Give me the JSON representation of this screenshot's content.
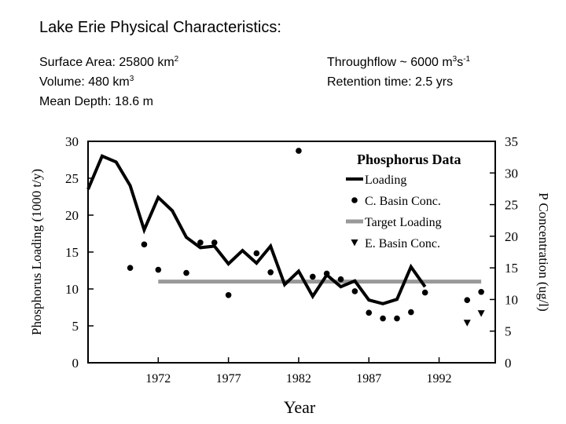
{
  "slide": {
    "title": "Lake Erie Physical Characteristics:",
    "facts_left": [
      {
        "text": "Surface Area: 25800 km",
        "sup": "2"
      },
      {
        "text": "Volume: 480 km",
        "sup": "3"
      },
      {
        "text": "Mean Depth: 18.6 m",
        "sup": ""
      }
    ],
    "facts_right": [
      {
        "text": "Throughflow ~ 6000 m",
        "sup": "3",
        "text2": "s",
        "sup2": "-1"
      },
      {
        "text": "Retention time: 2.5 yrs",
        "sup": "",
        "text2": "",
        "sup2": ""
      }
    ]
  },
  "chart_data": {
    "type": "line",
    "title": "Phosphorus Data",
    "xlabel": "Year",
    "ylabel_left": "Phosphorus Loading (1000 t/y)",
    "ylabel_right": "P Concentration (ug/l)",
    "xlim": [
      1967,
      1996
    ],
    "ylim_left": [
      0,
      30
    ],
    "ylim_right": [
      0,
      35
    ],
    "x_ticks": [
      1972,
      1977,
      1982,
      1987,
      1992
    ],
    "y_ticks_left": [
      0,
      5,
      10,
      15,
      20,
      25,
      30
    ],
    "y_ticks_right": [
      0,
      5,
      10,
      15,
      20,
      25,
      30,
      35
    ],
    "legend_position": "top-right",
    "series": [
      {
        "name": "Loading",
        "style": "thick-line",
        "axis": "left",
        "color": "#000000",
        "x": [
          1967,
          1968,
          1969,
          1970,
          1971,
          1972,
          1973,
          1974,
          1975,
          1976,
          1977,
          1978,
          1979,
          1980,
          1981,
          1982,
          1983,
          1984,
          1985,
          1986,
          1987,
          1988,
          1989,
          1990,
          1991
        ],
        "y": [
          23.5,
          28,
          27.2,
          24,
          18,
          22.4,
          20.6,
          17,
          15.6,
          15.8,
          13.4,
          15.2,
          13.5,
          15.8,
          10.6,
          12.4,
          9,
          11.9,
          10.3,
          11.1,
          8.5,
          8,
          8.6,
          13,
          10.3
        ]
      },
      {
        "name": "C. Basin Conc.",
        "style": "dot",
        "axis": "right",
        "color": "#000000",
        "x": [
          1970,
          1971,
          1972,
          1974,
          1975,
          1976,
          1977,
          1979,
          1980,
          1982,
          1983,
          1984,
          1985,
          1986,
          1987,
          1988,
          1989,
          1990,
          1991,
          1994,
          1995
        ],
        "y": [
          15,
          18.7,
          14.7,
          14.2,
          19,
          19,
          10.7,
          17.3,
          14.3,
          33.5,
          13.6,
          14.1,
          13.2,
          11.3,
          7.9,
          7,
          7,
          8,
          11.1,
          9.9,
          11.2
        ]
      },
      {
        "name": "Target Loading",
        "style": "band",
        "axis": "left",
        "color": "#999999",
        "x": [
          1972,
          1995
        ],
        "y": [
          11,
          11
        ]
      },
      {
        "name": "E. Basin Conc.",
        "style": "triangle",
        "axis": "right",
        "color": "#000000",
        "x": [
          1994,
          1995
        ],
        "y": [
          6.3,
          7.8
        ]
      }
    ]
  }
}
